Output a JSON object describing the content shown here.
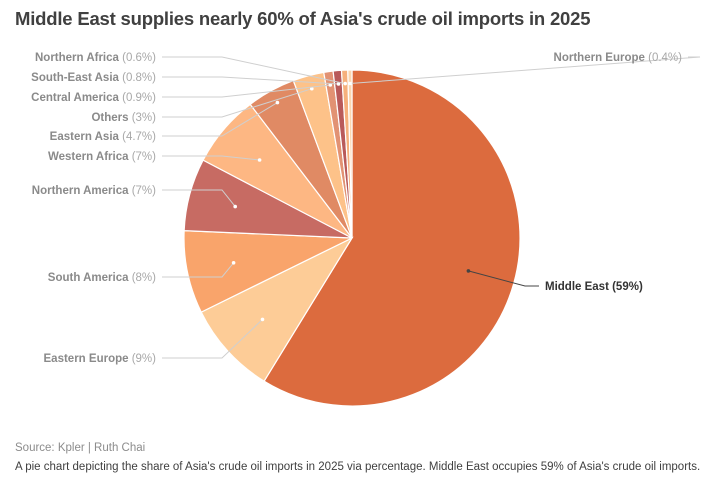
{
  "title": "Middle East supplies nearly 60% of Asia's crude oil imports in 2025",
  "source": "Source: Kpler | Ruth Chai",
  "caption": "A pie chart depicting the share of Asia's crude oil imports in 2025 via percentage. Middle East occupies 59% of Asia's crude oil imports.",
  "chart_data": {
    "type": "pie",
    "title": "Middle East supplies nearly 60% of Asia's crude oil imports in 2025",
    "unit": "%",
    "slices": [
      {
        "name": "Middle East",
        "label": "Middle East (59%)",
        "value": 59,
        "color": "#dc6b3e",
        "highlight": true
      },
      {
        "name": "Eastern Europe",
        "label": "Eastern Europe (9%)",
        "value": 9,
        "color": "#fdcc97"
      },
      {
        "name": "South America",
        "label": "South America (8%)",
        "value": 8,
        "color": "#f9a46b"
      },
      {
        "name": "Northern America",
        "label": "Northern America (7%)",
        "value": 7,
        "color": "#c76b63"
      },
      {
        "name": "Western Africa",
        "label": "Western Africa (7%)",
        "value": 7,
        "color": "#fdb783"
      },
      {
        "name": "Eastern Asia",
        "label": "Eastern Asia (4.7%)",
        "value": 4.7,
        "color": "#e08a64"
      },
      {
        "name": "Others",
        "label": "Others (3%)",
        "value": 3,
        "color": "#fdc289"
      },
      {
        "name": "Central America",
        "label": "Central America (0.9%)",
        "value": 0.9,
        "color": "#e29273"
      },
      {
        "name": "South-East Asia",
        "label": "South-East Asia (0.8%)",
        "value": 0.8,
        "color": "#b95a5a"
      },
      {
        "name": "Northern Africa",
        "label": "Northern Africa (0.6%)",
        "value": 0.6,
        "color": "#f6b07c"
      },
      {
        "name": "Northern Europe",
        "label": "Northern Europe (0.4%)",
        "value": 0.4,
        "color": "#fbd6b0"
      }
    ]
  }
}
